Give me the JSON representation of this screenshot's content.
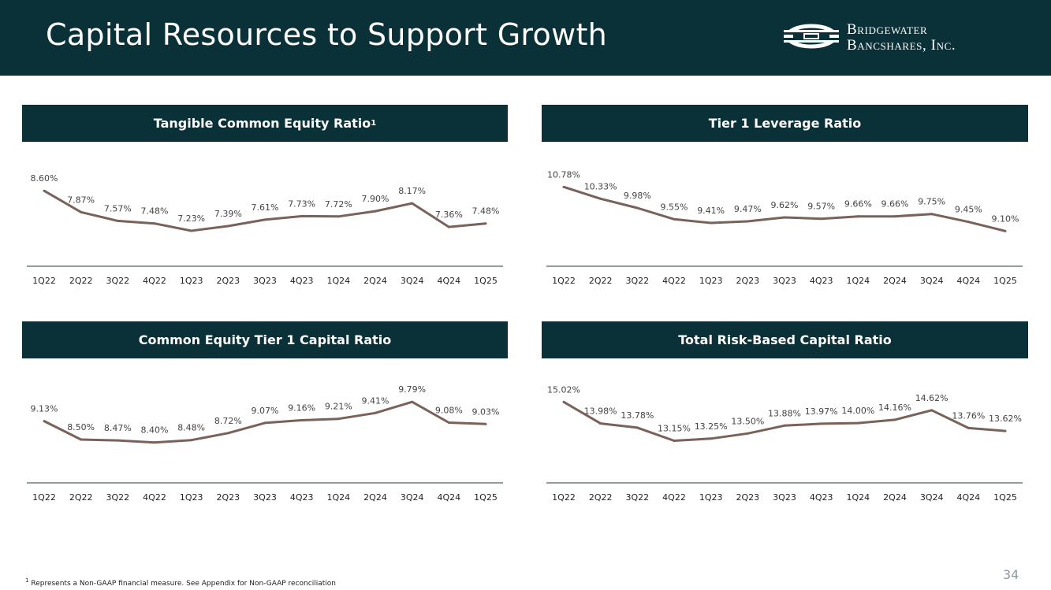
{
  "header": {
    "title": "Capital Resources to Support Growth",
    "logo_line1": "Bridgewater",
    "logo_line2": "Bancshares, Inc."
  },
  "colors": {
    "navy": "#0b3138",
    "line": "#7a615a",
    "axis": "#2b3a3d"
  },
  "chart_data": [
    {
      "type": "line",
      "title": "Tangible Common Equity Ratio",
      "title_superscript": "1",
      "categories": [
        "1Q22",
        "2Q22",
        "3Q22",
        "4Q22",
        "1Q23",
        "2Q23",
        "3Q23",
        "4Q23",
        "1Q24",
        "2Q24",
        "3Q24",
        "4Q24",
        "1Q25"
      ],
      "values": [
        8.6,
        7.87,
        7.57,
        7.48,
        7.23,
        7.39,
        7.61,
        7.73,
        7.72,
        7.9,
        8.17,
        7.36,
        7.48
      ],
      "labels": [
        "8.60%",
        "7.87%",
        "7.57%",
        "7.48%",
        "7.23%",
        "7.39%",
        "7.61%",
        "7.73%",
        "7.72%",
        "7.90%",
        "8.17%",
        "7.36%",
        "7.48%"
      ],
      "ylim": [
        6.5,
        9.2
      ]
    },
    {
      "type": "line",
      "title": "Tier 1 Leverage Ratio",
      "title_superscript": "",
      "categories": [
        "1Q22",
        "2Q22",
        "3Q22",
        "4Q22",
        "1Q23",
        "2Q23",
        "3Q23",
        "4Q23",
        "1Q24",
        "2Q24",
        "3Q24",
        "4Q24",
        "1Q25"
      ],
      "values": [
        10.78,
        10.33,
        9.98,
        9.55,
        9.41,
        9.47,
        9.62,
        9.57,
        9.66,
        9.66,
        9.75,
        9.45,
        9.1
      ],
      "labels": [
        "10.78%",
        "10.33%",
        "9.98%",
        "9.55%",
        "9.41%",
        "9.47%",
        "9.62%",
        "9.57%",
        "9.66%",
        "9.66%",
        "9.75%",
        "9.45%",
        "9.10%"
      ],
      "ylim": [
        8.3,
        11.3
      ]
    },
    {
      "type": "line",
      "title": "Common Equity Tier 1 Capital Ratio",
      "title_superscript": "",
      "categories": [
        "1Q22",
        "2Q22",
        "3Q22",
        "4Q22",
        "1Q23",
        "2Q23",
        "3Q23",
        "4Q23",
        "1Q24",
        "2Q24",
        "3Q24",
        "4Q24",
        "1Q25"
      ],
      "values": [
        9.13,
        8.5,
        8.47,
        8.4,
        8.48,
        8.72,
        9.07,
        9.16,
        9.21,
        9.41,
        9.79,
        9.08,
        9.03
      ],
      "labels": [
        "9.13%",
        "8.50%",
        "8.47%",
        "8.40%",
        "8.48%",
        "8.72%",
        "9.07%",
        "9.16%",
        "9.21%",
        "9.41%",
        "9.79%",
        "9.08%",
        "9.03%"
      ],
      "ylim": [
        7.5,
        10.2
      ]
    },
    {
      "type": "line",
      "title": "Total Risk-Based Capital Ratio",
      "title_superscript": "",
      "categories": [
        "1Q22",
        "2Q22",
        "3Q22",
        "4Q22",
        "1Q23",
        "2Q23",
        "3Q23",
        "4Q23",
        "1Q24",
        "2Q24",
        "3Q24",
        "4Q24",
        "1Q25"
      ],
      "values": [
        15.02,
        13.98,
        13.78,
        13.15,
        13.25,
        13.5,
        13.88,
        13.97,
        14.0,
        14.16,
        14.62,
        13.76,
        13.62
      ],
      "labels": [
        "15.02%",
        "13.98%",
        "13.78%",
        "13.15%",
        "13.25%",
        "13.50%",
        "13.88%",
        "13.97%",
        "14.00%",
        "14.16%",
        "14.62%",
        "13.76%",
        "13.62%"
      ],
      "ylim": [
        11.8,
        15.6
      ]
    }
  ],
  "footnote": {
    "marker": "1",
    "text": "Represents a Non-GAAP financial measure. See Appendix for Non-GAAP reconciliation"
  },
  "page_number": "34"
}
